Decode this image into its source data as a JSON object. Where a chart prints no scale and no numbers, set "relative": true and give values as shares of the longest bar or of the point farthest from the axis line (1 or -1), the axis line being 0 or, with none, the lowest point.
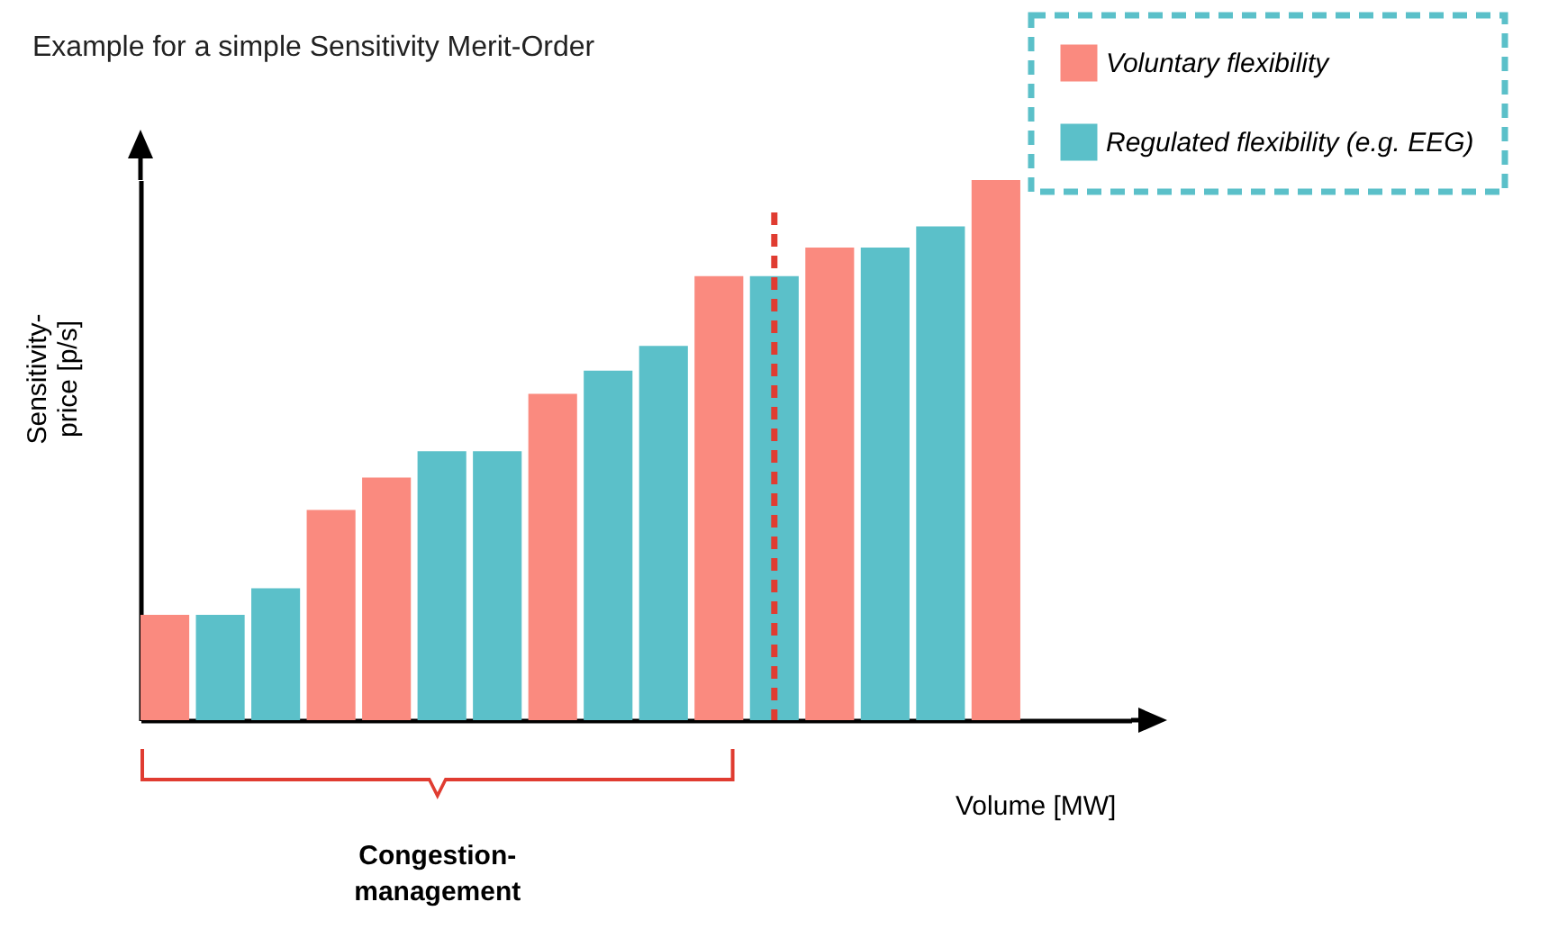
{
  "chart_data": {
    "type": "bar",
    "title": "Example for a simple Sensitivity Merit-Order",
    "xlabel": "Volume [MW]",
    "ylabel": "Sensitivity-price [p/s]",
    "relative": true,
    "stacked": true,
    "legend": "top right",
    "categories": [
      null,
      null,
      null,
      null,
      null,
      null,
      null,
      null,
      null,
      null,
      null,
      null,
      null,
      null,
      null,
      null
    ],
    "series": [
      {
        "name": "Voluntary flexibility",
        "color": "#fa8a7f",
        "values": [
          0.195,
          null,
          null,
          0.389,
          0.449,
          null,
          null,
          0.604,
          null,
          null,
          0.822,
          null,
          0.875,
          null,
          null,
          1
        ]
      },
      {
        "name": "Regulated flexibility (e.g. EEG)",
        "color": "#5bc0c9",
        "values": [
          null,
          0.195,
          0.244,
          null,
          null,
          0.498,
          0.498,
          null,
          0.647,
          0.693,
          null,
          0.822,
          null,
          0.875,
          0.914,
          null
        ]
      }
    ],
    "annotations": [
      "Congestion-management"
    ]
  }
}
